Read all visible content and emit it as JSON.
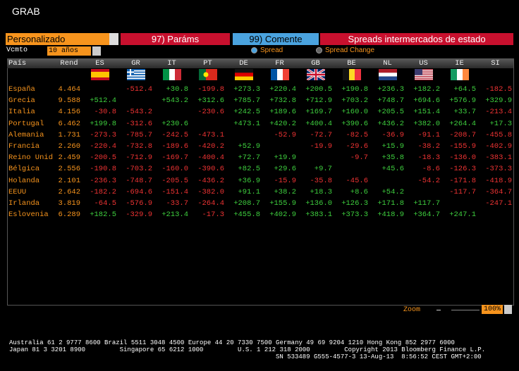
{
  "header": {
    "title": "GRAB"
  },
  "toolbar": {
    "preset": "Personalizado",
    "params": "97) Paráms",
    "comment": "99) Comente",
    "heading": "Spreads intermercados de estado"
  },
  "options": {
    "maturity_label": "Vcmto",
    "maturity": "10 años",
    "modes": [
      "Spread",
      "Spread Change"
    ]
  },
  "table": {
    "columns": [
      "País",
      "Rend",
      "ES",
      "GR",
      "IT",
      "PT",
      "DE",
      "FR",
      "GB",
      "BE",
      "NL",
      "US",
      "IE",
      "SI"
    ],
    "rows": [
      [
        "España",
        "4.464",
        null,
        "-512.4",
        "+30.8",
        "-199.8",
        "+273.3",
        "+220.4",
        "+200.5",
        "+190.8",
        "+236.3",
        "+182.2",
        "+64.5",
        "-182.5"
      ],
      [
        "Grecia",
        "9.588",
        "+512.4",
        null,
        "+543.2",
        "+312.6",
        "+785.7",
        "+732.8",
        "+712.9",
        "+703.2",
        "+748.7",
        "+694.6",
        "+576.9",
        "+329.9"
      ],
      [
        "Italia",
        "4.156",
        "-30.8",
        "-543.2",
        null,
        "-230.6",
        "+242.5",
        "+189.6",
        "+169.7",
        "+160.0",
        "+205.5",
        "+151.4",
        "+33.7",
        "-213.4"
      ],
      [
        "Portugal",
        "6.462",
        "+199.8",
        "-312.6",
        "+230.6",
        null,
        "+473.1",
        "+420.2",
        "+400.4",
        "+390.6",
        "+436.2",
        "+382.0",
        "+264.4",
        "+17.3"
      ],
      [
        "Alemania",
        "1.731",
        "-273.3",
        "-785.7",
        "-242.5",
        "-473.1",
        null,
        "-52.9",
        "-72.7",
        "-82.5",
        "-36.9",
        "-91.1",
        "-208.7",
        "-455.8"
      ],
      [
        "Francia",
        "2.260",
        "-220.4",
        "-732.8",
        "-189.6",
        "-420.2",
        "+52.9",
        null,
        "-19.9",
        "-29.6",
        "+15.9",
        "-38.2",
        "-155.9",
        "-402.9"
      ],
      [
        "Reino Unid",
        "2.459",
        "-200.5",
        "-712.9",
        "-169.7",
        "-400.4",
        "+72.7",
        "+19.9",
        null,
        "-9.7",
        "+35.8",
        "-18.3",
        "-136.0",
        "-383.1"
      ],
      [
        "Bélgica",
        "2.556",
        "-190.8",
        "-703.2",
        "-160.0",
        "-390.6",
        "+82.5",
        "+29.6",
        "+9.7",
        null,
        "+45.6",
        "-8.6",
        "-126.3",
        "-373.3"
      ],
      [
        "Holanda",
        "2.101",
        "-236.3",
        "-748.7",
        "-205.5",
        "-436.2",
        "+36.9",
        "-15.9",
        "-35.8",
        "-45.6",
        null,
        "-54.2",
        "-171.8",
        "-418.9"
      ],
      [
        "EEUU",
        "2.642",
        "-182.2",
        "-694.6",
        "-151.4",
        "-382.0",
        "+91.1",
        "+38.2",
        "+18.3",
        "+8.6",
        "+54.2",
        null,
        "-117.7",
        "-364.7"
      ],
      [
        "Irlanda",
        "3.819",
        "-64.5",
        "-576.9",
        "-33.7",
        "-264.4",
        "+208.7",
        "+155.9",
        "+136.0",
        "+126.3",
        "+171.8",
        "+117.7",
        null,
        "-247.1"
      ],
      [
        "Eslovenia",
        "6.289",
        "+182.5",
        "-329.9",
        "+213.4",
        "-17.3",
        "+455.8",
        "+402.9",
        "+383.1",
        "+373.3",
        "+418.9",
        "+364.7",
        "+247.1",
        null
      ]
    ]
  },
  "zoom": {
    "label": "Zoom",
    "value": "100%"
  },
  "footer": {
    "lines": [
      "Australia 61 2 9777 8600 Brazil 5511 3048 4500 Europe 44 20 7330 7500 Germany 49 69 9204 1210 Hong Kong 852 2977 6000",
      "Japan 81 3 3201 8900         Singapore 65 6212 1000         U.S. 1 212 318 2000         Copyright 2013 Bloomberg Finance L.P.",
      "SN 533489 G555-4577-3 13-Aug-13  8:56:52 CEST GMT+2:00"
    ]
  }
}
